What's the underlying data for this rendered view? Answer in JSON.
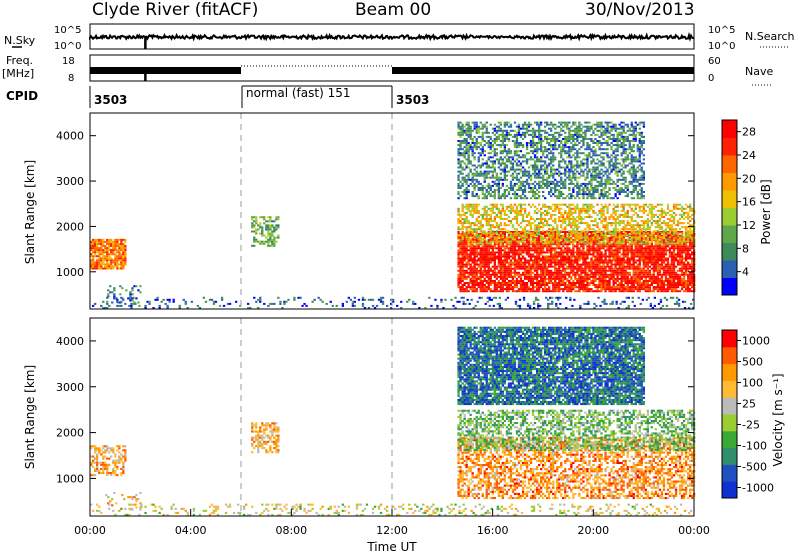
{
  "header": {
    "station": "Clyde River (fitACF)",
    "beam": "Beam 00",
    "date": "30/Nov/2013"
  },
  "top_panels": {
    "nsky": {
      "label": "N.Sky",
      "right_label": "N.Search",
      "left_ticks": [
        "10^5",
        "10^0"
      ],
      "right_ticks": [
        "10^5",
        "10^0"
      ]
    },
    "freq": {
      "label_line1": "Freq.",
      "label_line2": "[MHz]",
      "right_label": "Nave",
      "left_ticks": [
        "18",
        "8"
      ],
      "right_ticks": [
        "60",
        "0"
      ]
    },
    "cpid": {
      "label": "CPID",
      "segments": [
        {
          "text": "3503",
          "start_h": 0,
          "end_h": 6
        },
        {
          "text": "normal (fast) 151",
          "start_h": 6,
          "end_h": 12
        },
        {
          "text": "3503",
          "start_h": 12,
          "end_h": 24
        }
      ]
    }
  },
  "colors": {
    "power_scale": [
      "#0000ff",
      "#2b5fb3",
      "#3d8a5a",
      "#5fa84a",
      "#9acd32",
      "#f0c000",
      "#ff9900",
      "#ff6600",
      "#ff2200",
      "#ff0000"
    ],
    "velocity_scale": [
      "#ff0000",
      "#ff5a00",
      "#ff9900",
      "#ffbb33",
      "#bbbbbb",
      "#9acd32",
      "#3aaa35",
      "#2f8f6a",
      "#2050c0",
      "#1030d0"
    ]
  },
  "chart_data": [
    {
      "type": "heatmap",
      "name": "power",
      "ylabel": "Slant Range [km]",
      "xlabel": "",
      "xlim": [
        0,
        24
      ],
      "ylim": [
        180,
        4500
      ],
      "yticks": [
        "1000",
        "2000",
        "3000",
        "4000"
      ],
      "colorbar": {
        "label": "Power [dB]",
        "ticks": [
          "4",
          "8",
          "12",
          "16",
          "20",
          "24",
          "28"
        ],
        "range": [
          0,
          30
        ]
      },
      "regions": [
        {
          "t0": 0.0,
          "t1": 1.4,
          "r0": 1050,
          "r1": 1700,
          "level": 0.72
        },
        {
          "t0": 0.6,
          "t1": 2.0,
          "r0": 300,
          "r1": 700,
          "level": 0.2
        },
        {
          "t0": 6.4,
          "t1": 7.5,
          "r0": 1550,
          "r1": 2200,
          "level": 0.35
        },
        {
          "t0": 14.6,
          "t1": 24.0,
          "r0": 550,
          "r1": 1900,
          "level": 0.9
        },
        {
          "t0": 14.6,
          "t1": 24.0,
          "r0": 1600,
          "r1": 2500,
          "level": 0.55
        },
        {
          "t0": 14.6,
          "t1": 22.0,
          "r0": 2600,
          "r1": 4300,
          "level": 0.25
        },
        {
          "t0": 0.0,
          "t1": 24.0,
          "r0": 180,
          "r1": 420,
          "level": 0.15
        }
      ]
    },
    {
      "type": "heatmap",
      "name": "velocity",
      "ylabel": "Slant Range [km]",
      "xlabel": "Time UT",
      "xlim": [
        0,
        24
      ],
      "ylim": [
        180,
        4500
      ],
      "yticks": [
        "1000",
        "2000",
        "3000",
        "4000"
      ],
      "xticks": [
        "00:00",
        "04:00",
        "08:00",
        "12:00",
        "16:00",
        "20:00",
        "00:00"
      ],
      "colorbar": {
        "label": "Velocity [m s⁻¹]",
        "ticks": [
          "1000",
          "500",
          "100",
          "25",
          "-25",
          "-100",
          "-500",
          "-1000"
        ],
        "range": [
          -1200,
          1200
        ]
      },
      "regions": [
        {
          "t0": 0.0,
          "t1": 1.4,
          "r0": 1050,
          "r1": 1700,
          "level": 0.3
        },
        {
          "t0": 0.6,
          "t1": 2.0,
          "r0": 300,
          "r1": 700,
          "level": 0.35
        },
        {
          "t0": 6.4,
          "t1": 7.5,
          "r0": 1550,
          "r1": 2200,
          "level": 0.3
        },
        {
          "t0": 14.6,
          "t1": 24.0,
          "r0": 550,
          "r1": 1900,
          "level": 0.25
        },
        {
          "t0": 14.6,
          "t1": 24.0,
          "r0": 1600,
          "r1": 2500,
          "level": 0.6
        },
        {
          "t0": 14.6,
          "t1": 22.0,
          "r0": 2600,
          "r1": 4300,
          "level": 0.8
        },
        {
          "t0": 0.0,
          "t1": 24.0,
          "r0": 180,
          "r1": 420,
          "level": 0.45
        }
      ]
    }
  ]
}
